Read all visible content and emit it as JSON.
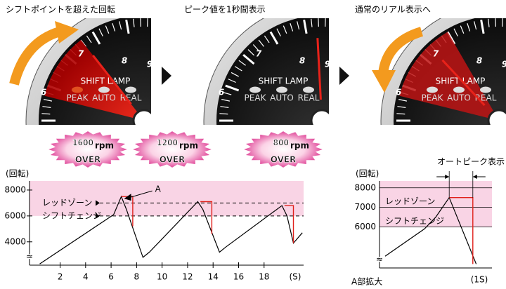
{
  "captions": [
    "シフトポイントを超えた回転",
    "ピーク値を1秒間表示",
    "通常のリアル表示へ"
  ],
  "gauges": {
    "numbers": [
      "6",
      "7",
      "8",
      "9"
    ],
    "shift_lamp": "SHIFT LAMP",
    "lamps": [
      "PEAK",
      "AUTO",
      "REAL"
    ]
  },
  "badges": [
    {
      "value": "1600",
      "unit": "rpm",
      "label": "OVER"
    },
    {
      "value": "1200",
      "unit": "rpm",
      "label": "OVER"
    },
    {
      "value": "800",
      "unit": "rpm",
      "label": "OVER"
    }
  ],
  "chart_data": [
    {
      "type": "line",
      "y_label": "(回転)",
      "x_label": "(S)",
      "annotation": "A",
      "xlim": [
        -0.4,
        21.1
      ],
      "ylim": [
        2200,
        8700
      ],
      "xticks": [
        2,
        4,
        6,
        8,
        10,
        12,
        14,
        16,
        18
      ],
      "yticks": [
        4000,
        6000,
        8000
      ],
      "reference_lines": [
        {
          "label": "レッドゾーン",
          "value": 7000
        },
        {
          "label": "シフトチェンジ",
          "value": 6000
        }
      ],
      "series": [
        {
          "color": "#000000",
          "x": [
            0.4,
            6.2,
            6.8,
            7.2,
            8.5,
            9,
            12.8,
            13.2,
            14.5,
            15,
            19.4,
            19.8,
            20.3,
            21
          ],
          "values": [
            2300,
            6100,
            7500,
            6500,
            2800,
            3200,
            7100,
            6500,
            3200,
            3600,
            6800,
            6000,
            3900,
            4700
          ]
        },
        {
          "color": "#e0201b",
          "x": [
            6.8,
            7.7,
            7.7,
            null,
            13.0,
            13.9,
            13.9,
            null,
            19.6,
            20.3,
            20.3
          ],
          "values": [
            7500,
            7500,
            5200,
            null,
            7100,
            7100,
            4600,
            null,
            6800,
            6800,
            3900
          ]
        }
      ]
    },
    {
      "type": "line",
      "title": "オートピーク表示",
      "caption": "A部拡大",
      "y_label": "(回転)",
      "x_label": "(1S)",
      "xlim": [
        0,
        10
      ],
      "ylim": [
        3900,
        8350
      ],
      "yticks": [
        6000,
        7000,
        8000
      ],
      "reference_lines": [
        {
          "label": "レッドゾーン",
          "value": 7000
        },
        {
          "label": "シフトチェンジ",
          "value": 6000
        }
      ],
      "series": [
        {
          "color": "#000000",
          "x": [
            0.5,
            4,
            5,
            6.2,
            8.6
          ],
          "values": [
            4500,
            5900,
            6500,
            7500,
            4100
          ]
        },
        {
          "color": "#e0201b",
          "x": [
            6.2,
            8.3,
            8.3
          ],
          "values": [
            7500,
            7500,
            4100
          ]
        }
      ]
    }
  ]
}
